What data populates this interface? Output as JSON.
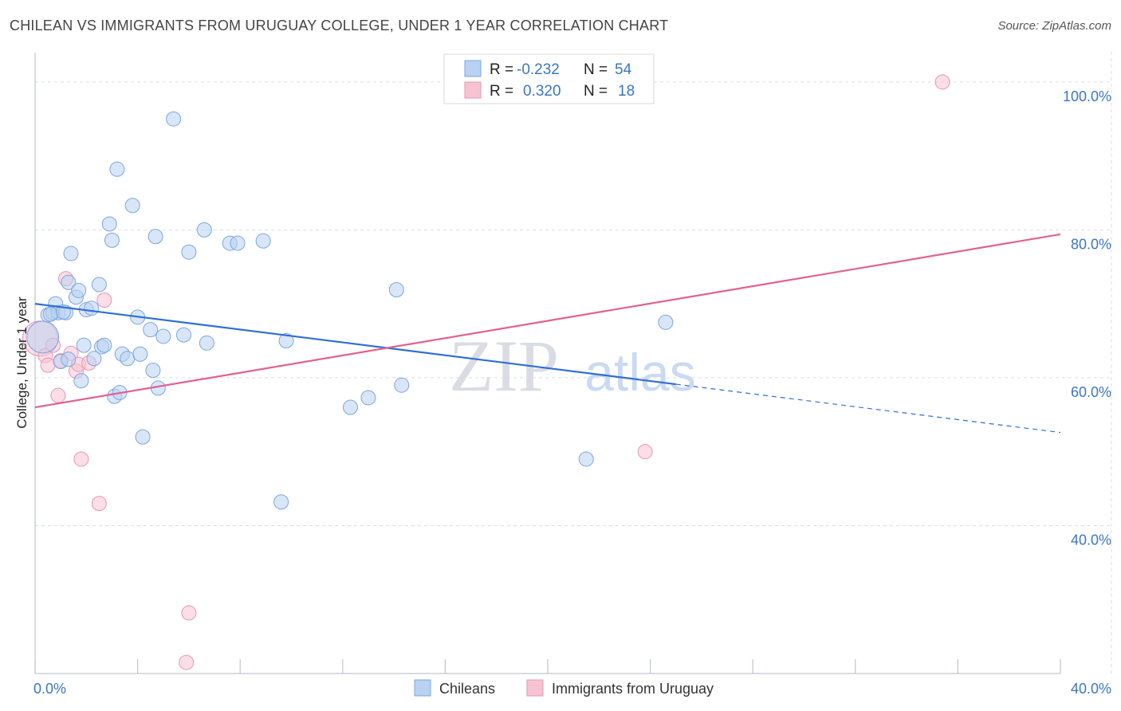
{
  "title": "CHILEAN VS IMMIGRANTS FROM URUGUAY COLLEGE, UNDER 1 YEAR CORRELATION CHART",
  "source": "Source: ZipAtlas.com",
  "watermark": {
    "zip": "ZIP",
    "atlas": "atlas"
  },
  "colors": {
    "blue_fill": "#b9d2f3",
    "blue_stroke": "#7aa6de",
    "blue_line": "#2f6fd0",
    "pink_fill": "#f7c3d3",
    "pink_stroke": "#e795b0",
    "pink_line": "#e0628e",
    "axis_text": "#3b75c6",
    "grid": "#d8dde6"
  },
  "legend": {
    "r_label": "R =",
    "n_label": "N =",
    "rows": [
      {
        "r": "-0.232",
        "n": "54"
      },
      {
        "r": "0.320",
        "n": "18"
      }
    ]
  },
  "bottom_legend": [
    "Chileans",
    "Immigrants from Uruguay"
  ],
  "chart_data": {
    "type": "scatter",
    "title": "CHILEAN VS IMMIGRANTS FROM URUGUAY COLLEGE, UNDER 1 YEAR CORRELATION CHART",
    "xlabel": "",
    "ylabel": "College, Under 1 year",
    "xlim": [
      0,
      40
    ],
    "ylim": [
      20,
      103
    ],
    "x_ticks": [
      0,
      4,
      8,
      12,
      16,
      20,
      24,
      28,
      32,
      36,
      40
    ],
    "x_tick_labels": [
      "0.0%",
      "40.0%"
    ],
    "y_ticks": [
      40,
      60,
      80,
      100
    ],
    "y_tick_labels": [
      "40.0%",
      "60.0%",
      "80.0%",
      "100.0%"
    ],
    "grid": true,
    "series": [
      {
        "name": "Chileans",
        "points": [
          [
            0.3,
            65.5
          ],
          [
            0.5,
            68.5
          ],
          [
            0.7,
            68.8
          ],
          [
            0.8,
            70.0
          ],
          [
            0.9,
            68.8
          ],
          [
            1.2,
            68.8
          ],
          [
            1.0,
            62.2
          ],
          [
            1.3,
            62.5
          ],
          [
            1.4,
            76.8
          ],
          [
            1.3,
            72.9
          ],
          [
            1.6,
            70.9
          ],
          [
            1.7,
            71.8
          ],
          [
            1.8,
            59.6
          ],
          [
            1.9,
            64.4
          ],
          [
            2.0,
            69.2
          ],
          [
            2.2,
            69.4
          ],
          [
            2.3,
            62.6
          ],
          [
            2.5,
            72.6
          ],
          [
            2.6,
            64.2
          ],
          [
            2.7,
            64.4
          ],
          [
            2.9,
            80.8
          ],
          [
            3.0,
            78.6
          ],
          [
            3.1,
            57.5
          ],
          [
            3.2,
            88.2
          ],
          [
            3.3,
            58.0
          ],
          [
            3.4,
            63.2
          ],
          [
            3.6,
            62.6
          ],
          [
            3.8,
            83.3
          ],
          [
            4.0,
            68.2
          ],
          [
            4.1,
            63.2
          ],
          [
            4.2,
            52.0
          ],
          [
            4.5,
            66.5
          ],
          [
            4.6,
            61.0
          ],
          [
            4.7,
            79.1
          ],
          [
            4.8,
            58.6
          ],
          [
            5.0,
            65.6
          ],
          [
            5.4,
            95.0
          ],
          [
            5.8,
            65.8
          ],
          [
            6.0,
            77.0
          ],
          [
            6.6,
            80.0
          ],
          [
            6.7,
            64.7
          ],
          [
            7.6,
            78.2
          ],
          [
            7.9,
            78.2
          ],
          [
            8.9,
            78.5
          ],
          [
            9.6,
            43.2
          ],
          [
            9.8,
            65.0
          ],
          [
            12.3,
            56.0
          ],
          [
            13.0,
            57.3
          ],
          [
            14.1,
            71.9
          ],
          [
            14.3,
            59.0
          ],
          [
            21.5,
            49.0
          ],
          [
            24.6,
            67.5
          ],
          [
            0.6,
            68.6
          ],
          [
            1.1,
            68.9
          ]
        ]
      },
      {
        "name": "Immigrants from Uruguay",
        "points": [
          [
            0.2,
            65.3
          ],
          [
            0.4,
            63.0
          ],
          [
            0.5,
            61.7
          ],
          [
            0.7,
            64.4
          ],
          [
            0.9,
            57.6
          ],
          [
            1.0,
            62.3
          ],
          [
            1.2,
            73.4
          ],
          [
            1.4,
            63.3
          ],
          [
            1.6,
            60.9
          ],
          [
            1.7,
            61.8
          ],
          [
            1.8,
            49.0
          ],
          [
            2.1,
            62.0
          ],
          [
            2.5,
            43.0
          ],
          [
            2.7,
            70.5
          ],
          [
            6.0,
            28.2
          ],
          [
            5.9,
            21.5
          ],
          [
            23.8,
            50.0
          ],
          [
            35.4,
            100.0
          ]
        ]
      }
    ],
    "trendlines": [
      {
        "series": "Chileans",
        "solid_x": [
          0,
          25
        ],
        "dashed_x": [
          25,
          40
        ],
        "y_at_0": 70.0,
        "slope": -0.435
      },
      {
        "series": "Immigrants from Uruguay",
        "solid_x": [
          0,
          40
        ],
        "y_at_0": 56.0,
        "slope": 0.585
      }
    ],
    "legend": {
      "placement": "top-center",
      "entries": [
        {
          "series": "Chileans",
          "r": -0.232,
          "n": 54
        },
        {
          "series": "Immigrants from Uruguay",
          "r": 0.32,
          "n": 18
        }
      ]
    }
  }
}
